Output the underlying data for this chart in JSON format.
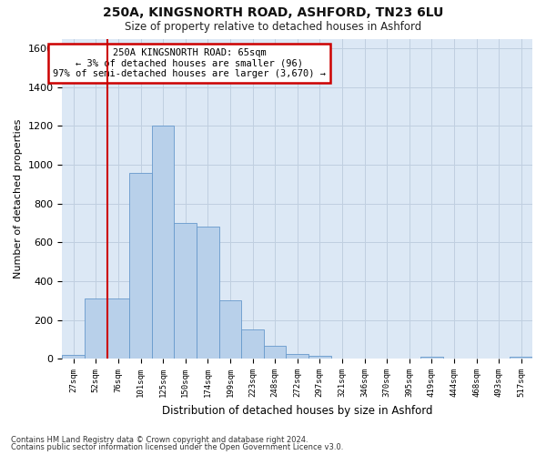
{
  "title1": "250A, KINGSNORTH ROAD, ASHFORD, TN23 6LU",
  "title2": "Size of property relative to detached houses in Ashford",
  "xlabel": "Distribution of detached houses by size in Ashford",
  "ylabel": "Number of detached properties",
  "footer1": "Contains HM Land Registry data © Crown copyright and database right 2024.",
  "footer2": "Contains public sector information licensed under the Open Government Licence v3.0.",
  "annotation_line1": "250A KINGSNORTH ROAD: 65sqm",
  "annotation_line2": "← 3% of detached houses are smaller (96)",
  "annotation_line3": "97% of semi-detached houses are larger (3,670) →",
  "bar_color": "#b8d0ea",
  "bar_edge_color": "#6699cc",
  "vline_color": "#cc0000",
  "annotation_box_edge": "#cc0000",
  "background_color": "#ffffff",
  "plot_bg_color": "#dce8f5",
  "grid_color": "#c0cfe0",
  "bins": [
    "27sqm",
    "52sqm",
    "76sqm",
    "101sqm",
    "125sqm",
    "150sqm",
    "174sqm",
    "199sqm",
    "223sqm",
    "248sqm",
    "272sqm",
    "297sqm",
    "321sqm",
    "346sqm",
    "370sqm",
    "395sqm",
    "419sqm",
    "444sqm",
    "468sqm",
    "493sqm",
    "517sqm"
  ],
  "values": [
    20,
    310,
    310,
    960,
    1200,
    700,
    680,
    300,
    150,
    65,
    25,
    15,
    0,
    0,
    0,
    0,
    10,
    0,
    0,
    0,
    10
  ],
  "vline_x": 1.5,
  "ylim": [
    0,
    1650
  ],
  "yticks": [
    0,
    200,
    400,
    600,
    800,
    1000,
    1200,
    1400,
    1600
  ]
}
